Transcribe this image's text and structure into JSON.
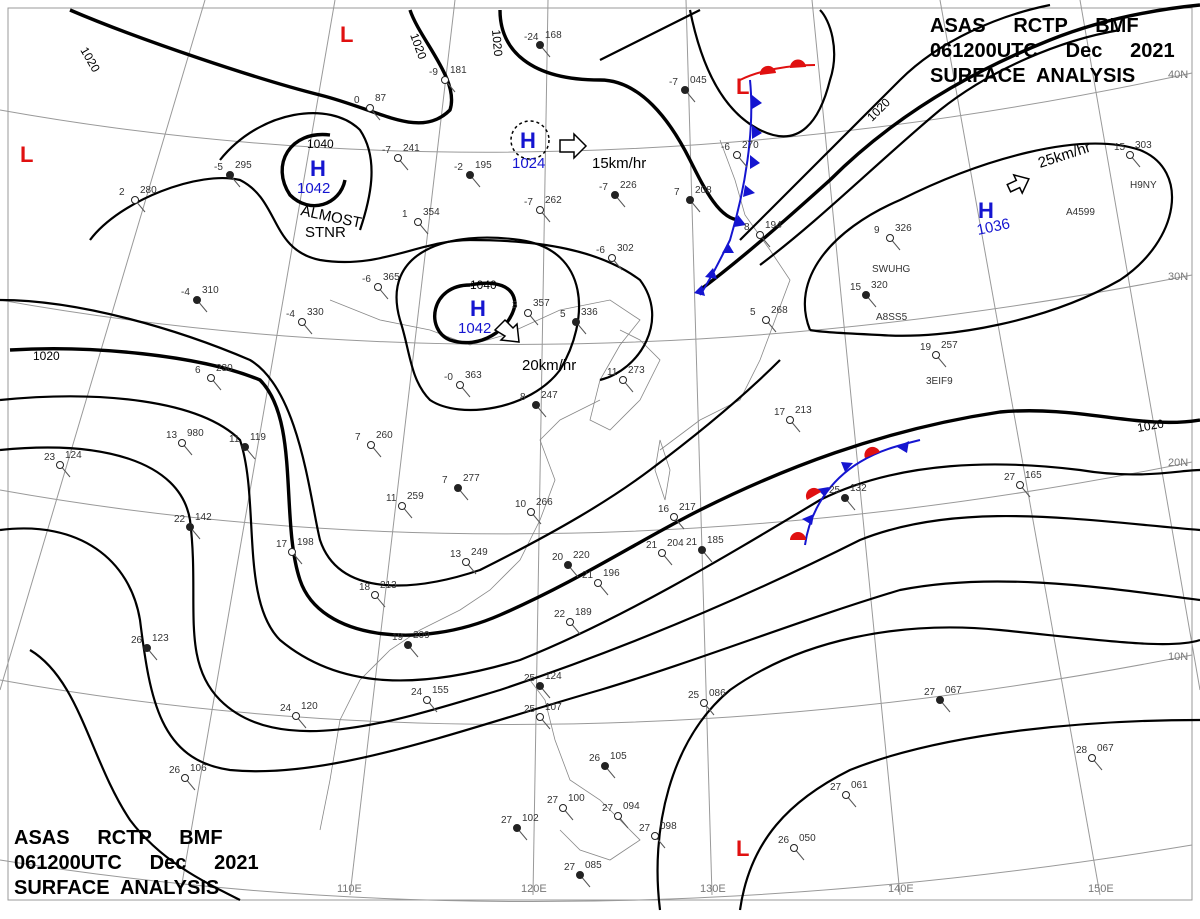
{
  "header": {
    "line1": "ASAS     RCTP     BMF",
    "line2": "061200UTC     Dec     2021",
    "line3": "SURFACE  ANALYSIS"
  },
  "graticule": {
    "longitudes": [
      "110E",
      "120E",
      "130E",
      "140E",
      "150E"
    ],
    "latitudes": [
      "40N",
      "30N",
      "20N",
      "10N"
    ]
  },
  "colors": {
    "high": "#1515d0",
    "low": "#e01010",
    "cold_front": "#1515d0",
    "warm_front": "#e01010",
    "isobar": "#000000"
  },
  "isobar_labels": [
    "1020",
    "1020",
    "1020",
    "1040",
    "1040",
    "1020",
    "1020",
    "1020"
  ],
  "highs": [
    {
      "symbol": "H",
      "pressure": "1042"
    },
    {
      "symbol": "H",
      "pressure": "1042"
    },
    {
      "symbol": "H",
      "pressure": "1024"
    },
    {
      "symbol": "H",
      "pressure": "1036"
    }
  ],
  "lows": [
    {
      "symbol": "L"
    },
    {
      "symbol": "L"
    },
    {
      "symbol": "L"
    }
  ],
  "annotations": {
    "almost": "ALMOST",
    "stnr": "STNR",
    "speed1": "15km/hr",
    "speed2": "20km/hr",
    "speed3": "25km/hr"
  },
  "stations": [
    {
      "t": "-24",
      "p": "168"
    },
    {
      "t": "-9",
      "p": "181"
    },
    {
      "t": "0",
      "p": "87"
    },
    {
      "t": "-5",
      "p": "295"
    },
    {
      "t": "2",
      "p": "280"
    },
    {
      "t": "-7",
      "p": "241"
    },
    {
      "t": "-2",
      "p": "195"
    },
    {
      "t": "1",
      "p": "354"
    },
    {
      "t": "-7",
      "p": "262"
    },
    {
      "t": "-7",
      "p": "226"
    },
    {
      "t": "-6",
      "p": "302"
    },
    {
      "t": "-6",
      "p": "365"
    },
    {
      "t": "-4",
      "p": "310"
    },
    {
      "t": "-4",
      "p": "330"
    },
    {
      "t": "3",
      "p": "357"
    },
    {
      "t": "5",
      "p": "336"
    },
    {
      "t": "-0",
      "p": "363"
    },
    {
      "t": "6",
      "p": "230"
    },
    {
      "t": "8",
      "p": "247"
    },
    {
      "t": "11",
      "p": "273"
    },
    {
      "t": "13",
      "p": "980"
    },
    {
      "t": "11",
      "p": "119"
    },
    {
      "t": "23",
      "p": "124"
    },
    {
      "t": "7",
      "p": "260"
    },
    {
      "t": "7",
      "p": "277"
    },
    {
      "t": "10",
      "p": "266"
    },
    {
      "t": "11",
      "p": "259"
    },
    {
      "t": "22",
      "p": "142"
    },
    {
      "t": "17",
      "p": "198"
    },
    {
      "t": "13",
      "p": "249"
    },
    {
      "t": "20",
      "p": "220"
    },
    {
      "t": "16",
      "p": "217"
    },
    {
      "t": "21",
      "p": "204"
    },
    {
      "t": "21",
      "p": "185"
    },
    {
      "t": "17",
      "p": "213"
    },
    {
      "t": "18",
      "p": "213"
    },
    {
      "t": "19",
      "p": "209"
    },
    {
      "t": "21",
      "p": "196"
    },
    {
      "t": "22",
      "p": "189"
    },
    {
      "t": "26",
      "p": "123"
    },
    {
      "t": "24",
      "p": "155"
    },
    {
      "t": "24",
      "p": "120"
    },
    {
      "t": "25",
      "p": "124"
    },
    {
      "t": "25",
      "p": "107"
    },
    {
      "t": "25",
      "p": "086"
    },
    {
      "t": "26",
      "p": "105"
    },
    {
      "t": "26",
      "p": "106"
    },
    {
      "t": "27",
      "p": "100"
    },
    {
      "t": "27",
      "p": "102"
    },
    {
      "t": "27",
      "p": "094"
    },
    {
      "t": "27",
      "p": "098"
    },
    {
      "t": "27",
      "p": "085"
    },
    {
      "t": "26",
      "p": "050"
    },
    {
      "t": "27",
      "p": "061"
    },
    {
      "t": "27",
      "p": "067"
    },
    {
      "t": "28",
      "p": "067"
    },
    {
      "t": "27",
      "p": "165"
    },
    {
      "t": "25",
      "p": "132"
    },
    {
      "t": "19",
      "p": "257"
    },
    {
      "t": "9",
      "p": "326"
    },
    {
      "t": "15",
      "p": "320"
    },
    {
      "t": "5",
      "p": "268"
    },
    {
      "t": "15",
      "p": "303"
    },
    {
      "t": "7",
      "p": "208"
    },
    {
      "t": "8",
      "p": "194"
    },
    {
      "t": "-6",
      "p": "270"
    },
    {
      "t": "-7",
      "p": "045"
    }
  ],
  "ship_ids": [
    "SWUHG",
    "A8SS5",
    "3EIF9",
    "H9NY",
    "A4599"
  ],
  "footer": {
    "line1": "ASAS     RCTP     BMF",
    "line2": "061200UTC     Dec     2021",
    "line3": "SURFACE  ANALYSIS"
  }
}
